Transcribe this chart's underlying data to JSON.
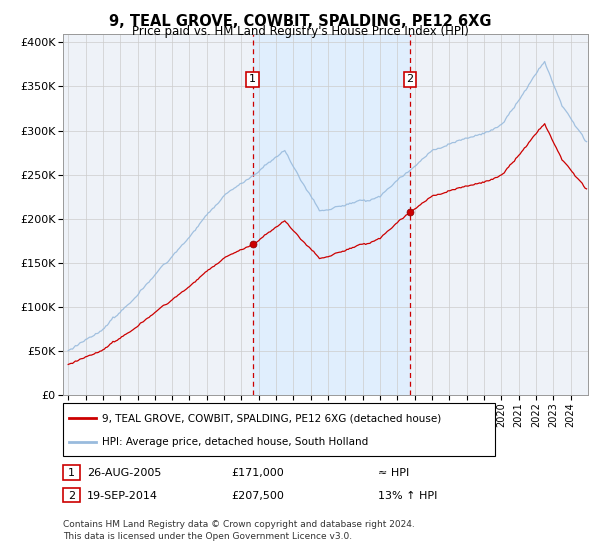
{
  "title": "9, TEAL GROVE, COWBIT, SPALDING, PE12 6XG",
  "subtitle": "Price paid vs. HM Land Registry's House Price Index (HPI)",
  "legend_line1": "9, TEAL GROVE, COWBIT, SPALDING, PE12 6XG (detached house)",
  "legend_line2": "HPI: Average price, detached house, South Holland",
  "footnote1": "Contains HM Land Registry data © Crown copyright and database right 2024.",
  "footnote2": "This data is licensed under the Open Government Licence v3.0.",
  "annotation1_label": "1",
  "annotation1_date": "26-AUG-2005",
  "annotation1_price": "£171,000",
  "annotation1_hpi": "≈ HPI",
  "annotation2_label": "2",
  "annotation2_date": "19-SEP-2014",
  "annotation2_price": "£207,500",
  "annotation2_hpi": "13% ↑ HPI",
  "sale1_year": 2005.65,
  "sale1_price": 171000,
  "sale2_year": 2014.72,
  "sale2_price": 207500,
  "price_line_color": "#cc0000",
  "hpi_line_color": "#99bbdd",
  "annotation_box_color": "#cc0000",
  "shade_color": "#ddeeff",
  "ylim": [
    0,
    410000
  ],
  "yticks": [
    0,
    50000,
    100000,
    150000,
    200000,
    250000,
    300000,
    350000,
    400000
  ],
  "ytick_labels": [
    "£0",
    "£50K",
    "£100K",
    "£150K",
    "£200K",
    "£250K",
    "£300K",
    "£350K",
    "£400K"
  ],
  "xlim_start": 1994.7,
  "xlim_end": 2025.0,
  "background_color": "#ffffff",
  "plot_bg_color": "#eef2f8",
  "grid_color": "#cccccc"
}
